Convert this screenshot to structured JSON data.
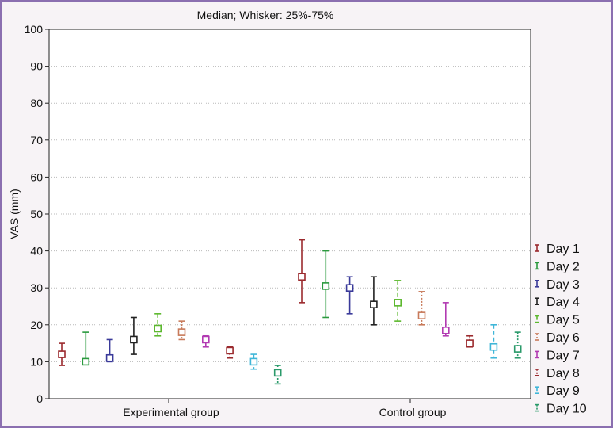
{
  "chart_data": {
    "type": "box",
    "title": "Median; Whisker: 25%-75%",
    "ylabel": "VAS (mm)",
    "xlabel": "",
    "ylim": [
      0,
      100
    ],
    "yticks": [
      0,
      10,
      20,
      30,
      40,
      50,
      60,
      70,
      80,
      90,
      100
    ],
    "groups": [
      "Experimental group",
      "Control group"
    ],
    "grid": true,
    "legend_position": "right",
    "series": [
      {
        "name": "Day 1",
        "color": "#9b2a2e",
        "dash": "solid",
        "values": [
          {
            "median": 12,
            "q1": 9,
            "q3": 15
          },
          {
            "median": 33,
            "q1": 26,
            "q3": 43
          }
        ]
      },
      {
        "name": "Day 2",
        "color": "#2a9a3e",
        "dash": "solid",
        "values": [
          {
            "median": 10,
            "q1": 9.5,
            "q3": 18
          },
          {
            "median": 30.5,
            "q1": 22,
            "q3": 40
          }
        ]
      },
      {
        "name": "Day 3",
        "color": "#3a3a9a",
        "dash": "solid",
        "values": [
          {
            "median": 11,
            "q1": 10,
            "q3": 16
          },
          {
            "median": 30,
            "q1": 23,
            "q3": 33
          }
        ]
      },
      {
        "name": "Day 4",
        "color": "#222222",
        "dash": "solid",
        "values": [
          {
            "median": 16,
            "q1": 12,
            "q3": 22
          },
          {
            "median": 25.5,
            "q1": 20,
            "q3": 33
          }
        ]
      },
      {
        "name": "Day 5",
        "color": "#5cb82e",
        "dash": "dash",
        "values": [
          {
            "median": 19,
            "q1": 17,
            "q3": 23
          },
          {
            "median": 26,
            "q1": 21,
            "q3": 32
          }
        ]
      },
      {
        "name": "Day 6",
        "color": "#c87a5a",
        "dash": "dot",
        "values": [
          {
            "median": 18,
            "q1": 16,
            "q3": 21
          },
          {
            "median": 22.5,
            "q1": 20,
            "q3": 29
          }
        ]
      },
      {
        "name": "Day 7",
        "color": "#b23ab2",
        "dash": "solid",
        "values": [
          {
            "median": 16,
            "q1": 14,
            "q3": 17
          },
          {
            "median": 18.5,
            "q1": 17,
            "q3": 26
          }
        ]
      },
      {
        "name": "Day 8",
        "color": "#9b2a2e",
        "dash": "dot",
        "values": [
          {
            "median": 13,
            "q1": 11,
            "q3": 14
          },
          {
            "median": 15,
            "q1": 14,
            "q3": 17
          }
        ]
      },
      {
        "name": "Day 9",
        "color": "#3fb6d8",
        "dash": "dash",
        "values": [
          {
            "median": 10,
            "q1": 8,
            "q3": 12
          },
          {
            "median": 14,
            "q1": 11,
            "q3": 20
          }
        ]
      },
      {
        "name": "Day 10",
        "color": "#2a9a6a",
        "dash": "dot",
        "values": [
          {
            "median": 7,
            "q1": 4,
            "q3": 9
          },
          {
            "median": 13.5,
            "q1": 11,
            "q3": 18
          }
        ]
      }
    ]
  }
}
